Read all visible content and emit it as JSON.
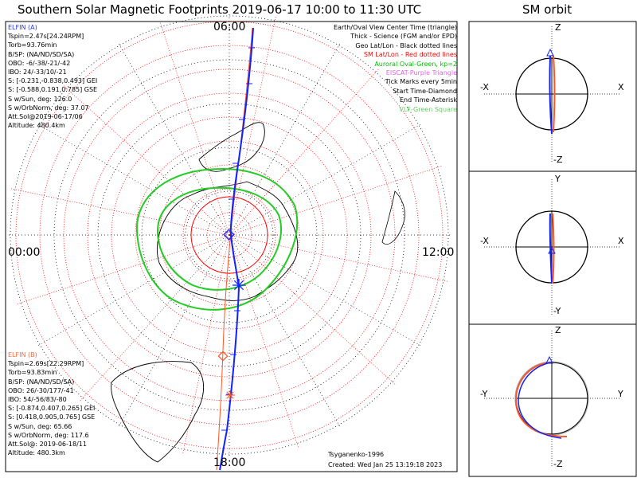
{
  "title": "Southern Solar Magnetic Footprints 2019-06-17 10:00 to 11:30 UTC",
  "sm_title": "SM orbit",
  "mlt_labels": {
    "top": "06:00",
    "left": "00:00",
    "right": "12:00",
    "bottom": "18:00"
  },
  "elfin_a": {
    "color": "#2233ff",
    "lines": [
      "ELFIN (A)",
      "Tspin=2.47s[24.24RPM]",
      "Torb=93.76min",
      "B/SP: (NA/ND/SD/SA)",
      "OBO: -6/-38/-21/-42",
      "IBO: 24/-33/10/-21",
      "S: [-0.231,-0.838,0.493] GEI",
      "S: [-0.588,0.191,0.785] GSE",
      "S w/Sun, deg: 126.0",
      "S w/OrbNorm, deg: 37.07",
      "Att.Sol@2019-06-17/06",
      "Altitude: 480.4km"
    ]
  },
  "elfin_b": {
    "color": "#ff6633",
    "lines": [
      "ELFIN (B)",
      "Tspin=2.69s[22.29RPM]",
      "Torb=93.83min",
      "B/SP: (NA/ND/SD/SA)",
      "OBO: 26/-30/177/-41",
      "IBO: 54/-56/83/-80",
      "S: [-0.874,0.407,0.265] GEI",
      "S: [0.418,0.905,0.765] GSE",
      "S w/Sun, deg: 65.66",
      "S w/OrbNorm, deg: 117.6",
      "Att.Sol@: 2019-06-18/11",
      "Altitude: 480.3km"
    ]
  },
  "legend": [
    {
      "text": "Earth/Oval View Center Time (triangle)",
      "color": "#000000"
    },
    {
      "text": "Thick - Science (FGM and/or EPD)",
      "color": "#000000"
    },
    {
      "text": "Geo Lat/Lon - Black dotted lines",
      "color": "#000000"
    },
    {
      "text": "SM Lat/Lon - Red dotted lines",
      "color": "#ff0000"
    },
    {
      "text": "Auroral Oval-Green, kp=2",
      "color": "#00c000"
    },
    {
      "text": "EISCAT-Purple Triangle",
      "color": "#dd66dd"
    },
    {
      "text": "Tick Marks every 5min",
      "color": "#000000"
    },
    {
      "text": "Start Time-Diamond",
      "color": "#000000"
    },
    {
      "text": "End Time-Asterisk",
      "color": "#000000"
    },
    {
      "text": "VLF-Green Square",
      "color": "#66cc66"
    }
  ],
  "footer": {
    "model": "Tsyganenko-1996",
    "created": "Created: Wed Jan 25 13:19:18 2023"
  },
  "chart_data": [
    {
      "type": "polar_map",
      "description_source": "main footprint plot",
      "grid": true,
      "mlt_labels": [
        "06:00",
        "00:00",
        "12:00",
        "18:00"
      ],
      "series": [
        {
          "name": "ELFIN (A)",
          "color": "#0000ff"
        },
        {
          "name": "ELFIN (B)",
          "color": "#ff6633"
        }
      ]
    },
    {
      "type": "scatter",
      "description_source": "SM orbit panels",
      "panels": [
        {
          "xlabel_left": "-X",
          "xlabel_right": "X",
          "ylabel_top": "Z",
          "ylabel_bottom": "-Z"
        },
        {
          "xlabel_left": "-X",
          "xlabel_right": "X",
          "ylabel_top": "Y",
          "ylabel_bottom": "-Y"
        },
        {
          "xlabel_left": "-Y",
          "xlabel_right": "Y",
          "ylabel_top": "Z",
          "ylabel_bottom": "-Z"
        }
      ]
    }
  ]
}
